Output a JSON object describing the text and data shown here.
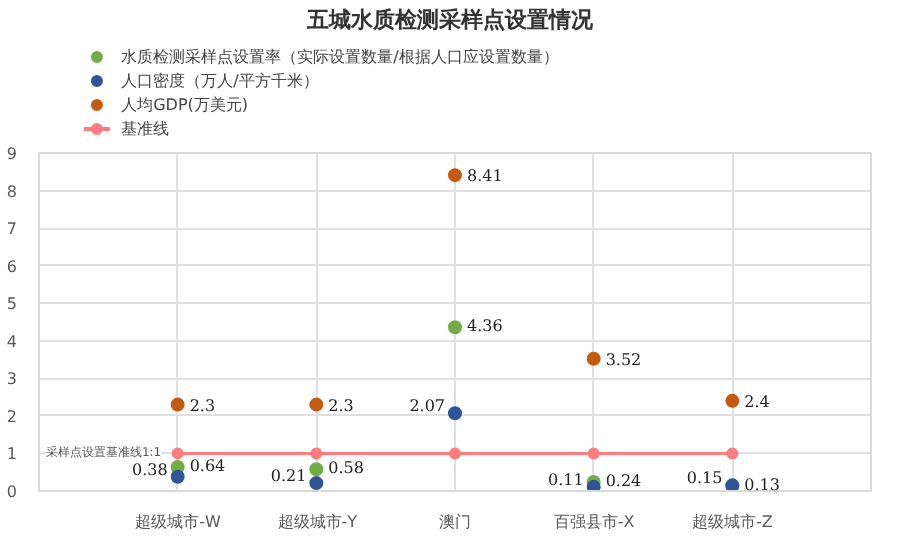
{
  "chart_data": {
    "type": "scatter",
    "title": "五城水质检测采样点设置情况",
    "categories": [
      "超级城市-W",
      "超级城市-Y",
      "澳门",
      "百强县市-X",
      "超级城市-Z"
    ],
    "series": [
      {
        "name": "水质检测采样点设置率（实际设置数量/根据人口应设置数量）",
        "color": "#70ad47",
        "values": [
          0.64,
          0.58,
          4.36,
          0.24,
          0.13
        ],
        "value_labels": [
          "0.64",
          "0.58",
          "4.36",
          "0.24",
          "0.13"
        ]
      },
      {
        "name": "人口密度（万人/平方千米）",
        "color": "#2f5597",
        "values": [
          0.38,
          0.21,
          2.07,
          0.11,
          0.15
        ],
        "value_labels": [
          "0.38",
          "0.21",
          "2.07",
          "0.11",
          "0.15"
        ]
      },
      {
        "name": "人均GDP(万美元)",
        "color": "#c55a11",
        "values": [
          2.3,
          2.3,
          8.41,
          3.52,
          2.4
        ],
        "value_labels": [
          "2.3",
          "2.3",
          "8.41",
          "3.52",
          "2.4"
        ]
      },
      {
        "name": "基准线",
        "color": "#ff7c80",
        "type": "line",
        "values": [
          1,
          1,
          1,
          1,
          1
        ]
      }
    ],
    "annotations": [
      "采样点设置基准线1:1"
    ],
    "ylim": [
      0,
      9
    ],
    "yticks": [
      0,
      1,
      2,
      3,
      4,
      5,
      6,
      7,
      8,
      9
    ],
    "grid": true,
    "legend": "top left",
    "marker": "circle"
  }
}
